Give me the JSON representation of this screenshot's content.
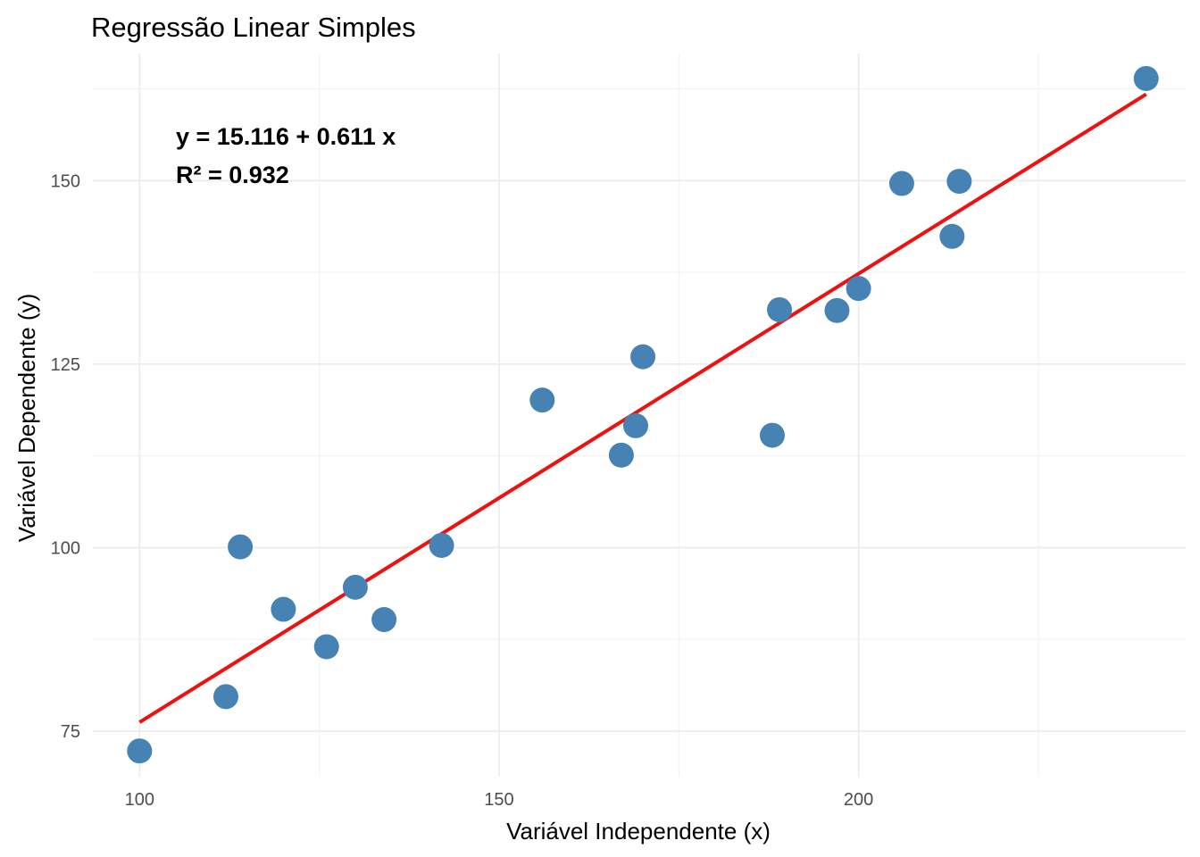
{
  "chart_data": {
    "type": "scatter",
    "title": "Regressão Linear Simples",
    "xlabel": "Variável Independente (x)",
    "ylabel": "Variável Dependente (y)",
    "xlim": [
      93.5,
      245.5
    ],
    "ylim": [
      68.8,
      167.3
    ],
    "x_ticks": [
      100,
      150,
      200
    ],
    "y_ticks": [
      75,
      100,
      125,
      150
    ],
    "x_minor_ticks": [
      125,
      175,
      225
    ],
    "y_minor_ticks": [
      87.5,
      112.5,
      137.5,
      162.5
    ],
    "grid": true,
    "points": [
      {
        "x": 100,
        "y": 72.3
      },
      {
        "x": 112,
        "y": 79.7
      },
      {
        "x": 114,
        "y": 100.1
      },
      {
        "x": 120,
        "y": 91.6
      },
      {
        "x": 126,
        "y": 86.5
      },
      {
        "x": 130,
        "y": 94.6
      },
      {
        "x": 134,
        "y": 90.2
      },
      {
        "x": 142,
        "y": 100.3
      },
      {
        "x": 156,
        "y": 120.1
      },
      {
        "x": 167,
        "y": 112.6
      },
      {
        "x": 169,
        "y": 116.6
      },
      {
        "x": 170,
        "y": 126.0
      },
      {
        "x": 188,
        "y": 115.3
      },
      {
        "x": 189,
        "y": 132.4
      },
      {
        "x": 197,
        "y": 132.3
      },
      {
        "x": 200,
        "y": 135.3
      },
      {
        "x": 206,
        "y": 149.6
      },
      {
        "x": 213,
        "y": 142.4
      },
      {
        "x": 214,
        "y": 149.9
      },
      {
        "x": 240,
        "y": 163.9
      }
    ],
    "regression": {
      "intercept": 15.116,
      "slope": 0.611,
      "x_range": [
        100,
        240
      ]
    },
    "annotations": [
      "y = 15.116 + 0.611 x",
      "R² = 0.932"
    ],
    "colors": {
      "points": "#4682b4",
      "line": "#ee1111"
    }
  }
}
